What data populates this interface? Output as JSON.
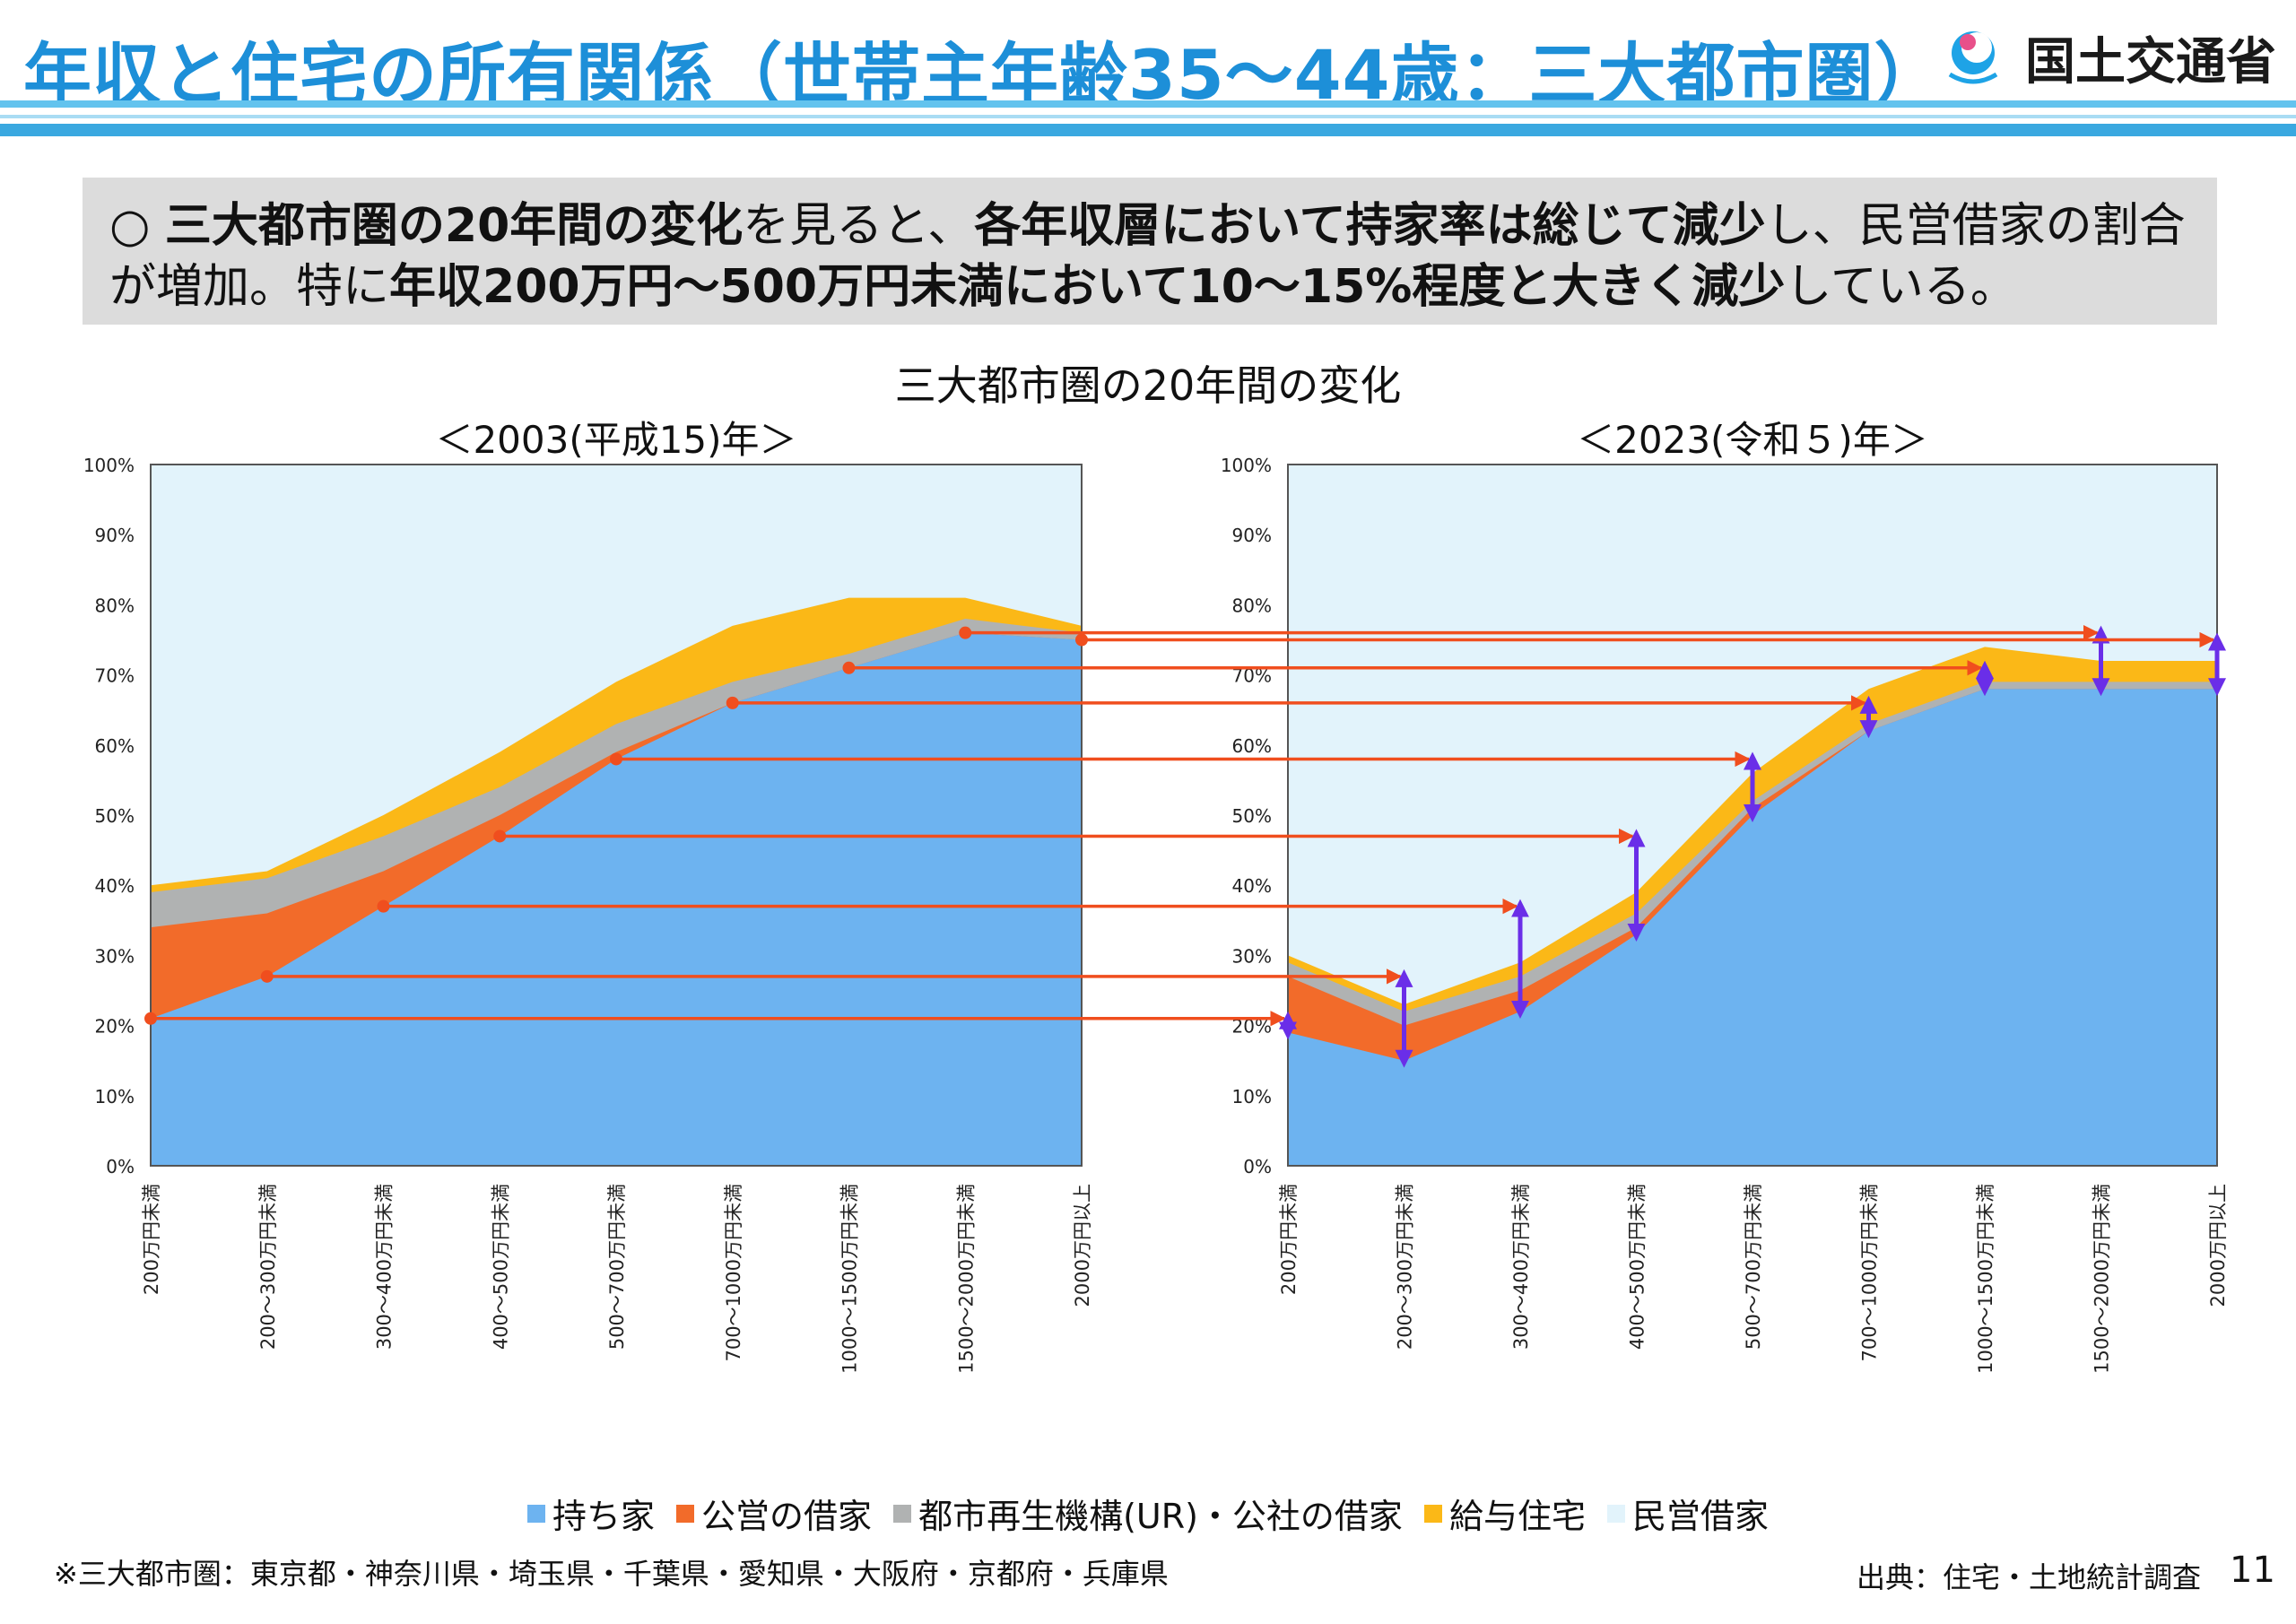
{
  "header": {
    "title": "年収と住宅の所有関係（世帯主年齢35～44歳：三大都市圏）",
    "ministry": "国土交通省"
  },
  "summary": {
    "bullet": "○",
    "runs": [
      {
        "text": "三大都市圏の20年間の変化",
        "bold": true
      },
      {
        "text": "を見ると、",
        "bold": false
      },
      {
        "text": "各年収層において持家率は総じて減少",
        "bold": true
      },
      {
        "text": "し、民営借家の割合が増加。特に",
        "bold": false
      },
      {
        "text": "年収200万円～500万円未満において10～15%程度と大きく減少",
        "bold": true
      },
      {
        "text": "している。",
        "bold": false
      }
    ]
  },
  "panel_title": "三大都市圏の20年間の変化",
  "legend": [
    {
      "name": "持ち家",
      "color": "#6db3f0"
    },
    {
      "name": "公営の借家",
      "color": "#f26b2a"
    },
    {
      "name": "都市再生機構(UR)・公社の借家",
      "color": "#b0b2b2"
    },
    {
      "name": "給与住宅",
      "color": "#fbb817"
    },
    {
      "name": "民営借家",
      "color": "#e2f3fb"
    }
  ],
  "chart_data": [
    {
      "type": "area",
      "title": "＜2003(平成15)年＞",
      "stacked": true,
      "categories": [
        "200万円未満",
        "200～300万円未満",
        "300～400万円未満",
        "400～500万円未満",
        "500～700万円未満",
        "700～1000万円未満",
        "1000～1500万円未満",
        "1500～2000万円未満",
        "2000万円以上"
      ],
      "yticks": [
        "0%",
        "10%",
        "20%",
        "30%",
        "40%",
        "50%",
        "60%",
        "70%",
        "80%",
        "90%",
        "100%"
      ],
      "ylim": [
        0,
        100
      ],
      "series": [
        {
          "name": "持ち家",
          "values": [
            21,
            27,
            37,
            47,
            58,
            66,
            71,
            76,
            75
          ]
        },
        {
          "name": "公営の借家",
          "values": [
            13,
            9,
            5,
            3,
            1,
            0,
            0,
            0,
            0
          ]
        },
        {
          "name": "都市再生機構(UR)・公社の借家",
          "values": [
            5,
            5,
            5,
            4,
            4,
            3,
            2,
            2,
            1
          ]
        },
        {
          "name": "給与住宅",
          "values": [
            1,
            1,
            3,
            5,
            6,
            8,
            8,
            3,
            1
          ]
        },
        {
          "name": "民営借家",
          "values": [
            60,
            58,
            50,
            41,
            31,
            23,
            19,
            19,
            23
          ]
        }
      ]
    },
    {
      "type": "area",
      "title": "＜2023(令和５)年＞",
      "stacked": true,
      "categories": [
        "200万円未満",
        "200～300万円未満",
        "300～400万円未満",
        "400～500万円未満",
        "500～700万円未満",
        "700～1000万円未満",
        "1000～1500万円未満",
        "1500～2000万円未満",
        "2000万円以上"
      ],
      "yticks": [
        "0%",
        "10%",
        "20%",
        "30%",
        "40%",
        "50%",
        "60%",
        "70%",
        "80%",
        "90%",
        "100%"
      ],
      "ylim": [
        0,
        100
      ],
      "series": [
        {
          "name": "持ち家",
          "values": [
            19,
            15,
            22,
            33,
            50,
            62,
            68,
            68,
            68
          ]
        },
        {
          "name": "公営の借家",
          "values": [
            8,
            5,
            3,
            1,
            1,
            0,
            0,
            0,
            0
          ]
        },
        {
          "name": "都市再生機構(UR)・公社の借家",
          "values": [
            2,
            2,
            2,
            2,
            1,
            1,
            1,
            1,
            1
          ]
        },
        {
          "name": "給与住宅",
          "values": [
            1,
            1,
            2,
            3,
            4,
            5,
            5,
            3,
            3
          ]
        },
        {
          "name": "民営借家",
          "values": [
            70,
            77,
            71,
            61,
            44,
            32,
            26,
            28,
            28
          ]
        }
      ]
    }
  ],
  "footnote": "※三大都市圏：東京都・神奈川県・埼玉県・千葉県・愛知県・大阪府・京都府・兵庫県",
  "source": "出典：住宅・土地統計調査",
  "page_number": "11"
}
